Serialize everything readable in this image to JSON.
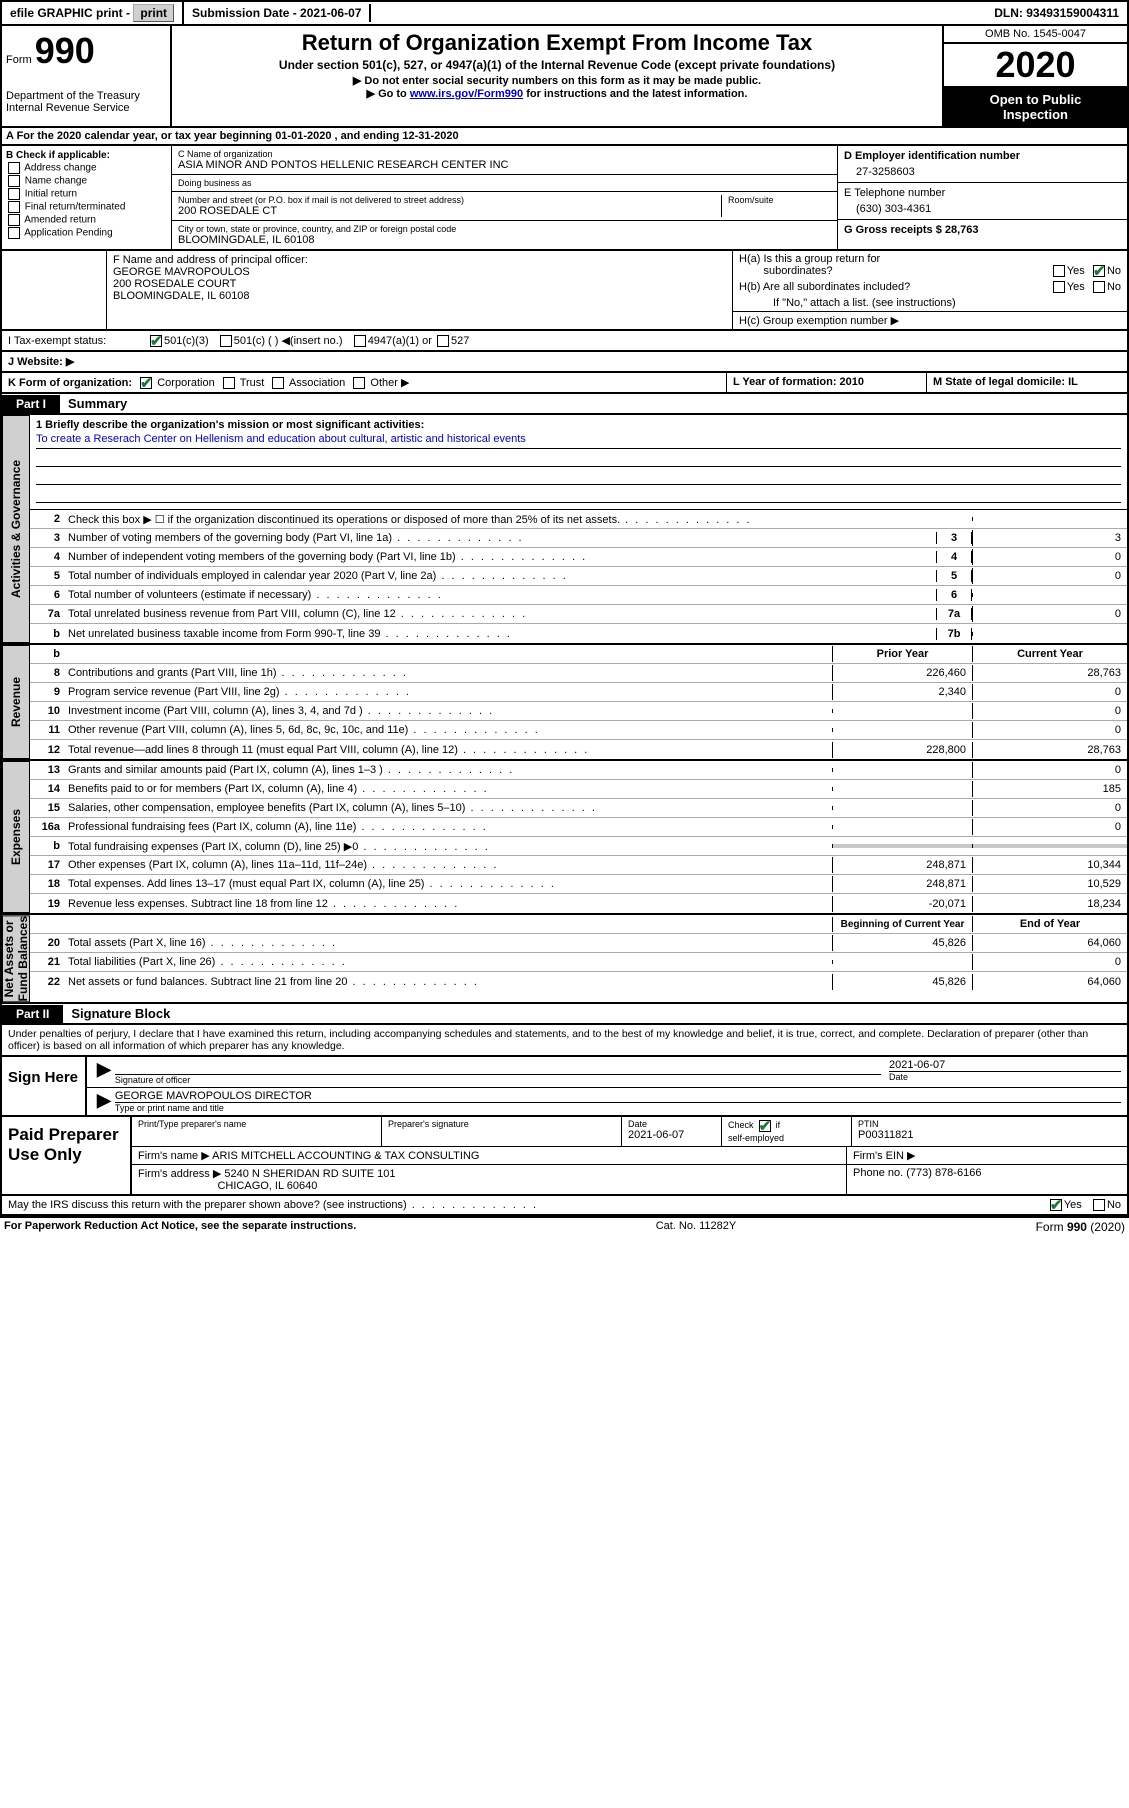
{
  "topbar": {
    "efile": "efile GRAPHIC print -",
    "submission_label": "Submission Date - 2021-06-07",
    "dln": "DLN: 93493159004311"
  },
  "header": {
    "form_label": "Form",
    "form_num": "990",
    "dept": "Department of the Treasury\nInternal Revenue Service",
    "title": "Return of Organization Exempt From Income Tax",
    "sub1": "Under section 501(c), 527, or 4947(a)(1) of the Internal Revenue Code (except private foundations)",
    "sub2": "▶ Do not enter social security numbers on this form as it may be made public.",
    "sub3a": "▶ Go to ",
    "sub3_link": "www.irs.gov/Form990",
    "sub3b": " for instructions and the latest information.",
    "omb": "OMB No. 1545-0047",
    "year": "2020",
    "inspect1": "Open to Public",
    "inspect2": "Inspection"
  },
  "band_a": "A   For the 2020 calendar year, or tax year beginning 01-01-2020     , and ending 12-31-2020",
  "b": {
    "label": "B Check if applicable:",
    "opts": [
      "Address change",
      "Name change",
      "Initial return",
      "Final return/terminated",
      "Amended return",
      "Application Pending"
    ]
  },
  "c": {
    "name_label": "C Name of organization",
    "name": "ASIA MINOR AND PONTOS HELLENIC RESEARCH CENTER INC",
    "dba_label": "Doing business as",
    "dba": "",
    "street_label": "Number and street (or P.O. box if mail is not delivered to street address)",
    "room_label": "Room/suite",
    "street": "200 ROSEDALE CT",
    "city_label": "City or town, state or province, country, and ZIP or foreign postal code",
    "city": "BLOOMINGDALE, IL  60108"
  },
  "d": {
    "ein_label": "D Employer identification number",
    "ein": "27-3258603",
    "tel_label": "E Telephone number",
    "tel": "(630) 303-4361",
    "gross_label": "G Gross receipts $ 28,763"
  },
  "f": {
    "label": "F  Name and address of principal officer:",
    "name": "GEORGE MAVROPOULOS",
    "addr1": "200 ROSEDALE COURT",
    "addr2": "BLOOMINGDALE, IL  60108"
  },
  "h": {
    "a": "H(a)  Is this a group return for",
    "a2": "subordinates?",
    "b": "H(b)  Are all subordinates included?",
    "note": "If \"No,\" attach a list. (see instructions)",
    "c": "H(c)  Group exemption number ▶",
    "yes": "Yes",
    "no": "No"
  },
  "i": {
    "label": "I    Tax-exempt status:",
    "o1": "501(c)(3)",
    "o2": "501(c) (  ) ◀(insert no.)",
    "o3": "4947(a)(1) or",
    "o4": "527"
  },
  "j": {
    "label": "J    Website: ▶"
  },
  "k": {
    "label": "K Form of organization:",
    "o1": "Corporation",
    "o2": "Trust",
    "o3": "Association",
    "o4": "Other ▶"
  },
  "l": {
    "label": "L Year of formation: 2010"
  },
  "m": {
    "label": "M State of legal domicile: IL"
  },
  "part1": {
    "hdr": "Part I",
    "title": "Summary"
  },
  "vtabs": {
    "gov": "Activities & Governance",
    "rev": "Revenue",
    "exp": "Expenses",
    "net": "Net Assets or\nFund Balances"
  },
  "mission": {
    "label": "1   Briefly describe the organization's mission or most significant activities:",
    "text": "To create a Reserach Center on Hellenism and education about cultural, artistic and historical events"
  },
  "gov_lines": [
    {
      "n": "2",
      "d": "Check this box ▶ ☐  if the organization discontinued its operations or disposed of more than 25% of its net assets.",
      "box": "",
      "val": ""
    },
    {
      "n": "3",
      "d": "Number of voting members of the governing body (Part VI, line 1a)",
      "box": "3",
      "val": "3"
    },
    {
      "n": "4",
      "d": "Number of independent voting members of the governing body (Part VI, line 1b)",
      "box": "4",
      "val": "0"
    },
    {
      "n": "5",
      "d": "Total number of individuals employed in calendar year 2020 (Part V, line 2a)",
      "box": "5",
      "val": "0"
    },
    {
      "n": "6",
      "d": "Total number of volunteers (estimate if necessary)",
      "box": "6",
      "val": ""
    },
    {
      "n": "7a",
      "d": "Total unrelated business revenue from Part VIII, column (C), line 12",
      "box": "7a",
      "val": "0"
    },
    {
      "n": "b",
      "d": "Net unrelated business taxable income from Form 990-T, line 39",
      "box": "7b",
      "val": ""
    }
  ],
  "yr_head": {
    "prior": "Prior Year",
    "current": "Current Year"
  },
  "rev_lines": [
    {
      "n": "8",
      "d": "Contributions and grants (Part VIII, line 1h)",
      "p": "226,460",
      "c": "28,763"
    },
    {
      "n": "9",
      "d": "Program service revenue (Part VIII, line 2g)",
      "p": "2,340",
      "c": "0"
    },
    {
      "n": "10",
      "d": "Investment income (Part VIII, column (A), lines 3, 4, and 7d )",
      "p": "",
      "c": "0"
    },
    {
      "n": "11",
      "d": "Other revenue (Part VIII, column (A), lines 5, 6d, 8c, 9c, 10c, and 11e)",
      "p": "",
      "c": "0"
    },
    {
      "n": "12",
      "d": "Total revenue—add lines 8 through 11 (must equal Part VIII, column (A), line 12)",
      "p": "228,800",
      "c": "28,763"
    }
  ],
  "exp_lines": [
    {
      "n": "13",
      "d": "Grants and similar amounts paid (Part IX, column (A), lines 1–3 )",
      "p": "",
      "c": "0"
    },
    {
      "n": "14",
      "d": "Benefits paid to or for members (Part IX, column (A), line 4)",
      "p": "",
      "c": "185"
    },
    {
      "n": "15",
      "d": "Salaries, other compensation, employee benefits (Part IX, column (A), lines 5–10)",
      "p": "",
      "c": "0"
    },
    {
      "n": "16a",
      "d": "Professional fundraising fees (Part IX, column (A), line 11e)",
      "p": "",
      "c": "0"
    },
    {
      "n": "b",
      "d": "Total fundraising expenses (Part IX, column (D), line 25) ▶0",
      "p": "shade",
      "c": "shade"
    },
    {
      "n": "17",
      "d": "Other expenses (Part IX, column (A), lines 11a–11d, 11f–24e)",
      "p": "248,871",
      "c": "10,344"
    },
    {
      "n": "18",
      "d": "Total expenses. Add lines 13–17 (must equal Part IX, column (A), line 25)",
      "p": "248,871",
      "c": "10,529"
    },
    {
      "n": "19",
      "d": "Revenue less expenses. Subtract line 18 from line 12",
      "p": "-20,071",
      "c": "18,234"
    }
  ],
  "net_head": {
    "begin": "Beginning of Current Year",
    "end": "End of Year"
  },
  "net_lines": [
    {
      "n": "20",
      "d": "Total assets (Part X, line 16)",
      "p": "45,826",
      "c": "64,060"
    },
    {
      "n": "21",
      "d": "Total liabilities (Part X, line 26)",
      "p": "",
      "c": "0"
    },
    {
      "n": "22",
      "d": "Net assets or fund balances. Subtract line 21 from line 20",
      "p": "45,826",
      "c": "64,060"
    }
  ],
  "part2": {
    "hdr": "Part II",
    "title": "Signature Block"
  },
  "declare": "Under penalties of perjury, I declare that I have examined this return, including accompanying schedules and statements, and to the best of my knowledge and belief, it is true, correct, and complete. Declaration of preparer (other than officer) is based on all information of which preparer has any knowledge.",
  "sign": {
    "left": "Sign Here",
    "sig_label": "Signature of officer",
    "date": "2021-06-07",
    "date_label": "Date",
    "name": "GEORGE MAVROPOULOS  DIRECTOR",
    "name_label": "Type or print name and title"
  },
  "paid": {
    "left": "Paid Preparer Use Only",
    "h1": "Print/Type preparer's name",
    "h2": "Preparer's signature",
    "h3": "Date",
    "h3v": "2021-06-07",
    "h4a": "Check",
    "h4b": "if",
    "h4c": "self-employed",
    "h5": "PTIN",
    "h5v": "P00311821",
    "firm_label": "Firm's name    ▶",
    "firm": "ARIS MITCHELL ACCOUNTING & TAX CONSULTING",
    "ein_label": "Firm's EIN ▶",
    "addr_label": "Firm's address ▶",
    "addr1": "5240 N SHERIDAN RD SUITE 101",
    "addr2": "CHICAGO, IL  60640",
    "phone_label": "Phone no. (773) 878-6166"
  },
  "may": {
    "q": "May the IRS discuss this return with the preparer shown above? (see instructions)",
    "yes": "Yes",
    "no": "No"
  },
  "footer": {
    "l": "For Paperwork Reduction Act Notice, see the separate instructions.",
    "c": "Cat. No. 11282Y",
    "r": "Form 990 (2020)"
  }
}
